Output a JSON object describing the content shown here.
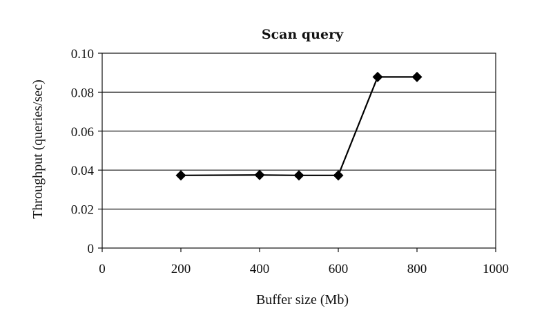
{
  "chart_data": {
    "type": "line",
    "title": "Scan query",
    "xlabel": "Buffer size (Mb)",
    "ylabel": "Throughput (queries/sec)",
    "xlim": [
      0,
      1000
    ],
    "ylim": [
      0,
      0.1
    ],
    "x_ticks": [
      0,
      200,
      400,
      600,
      800,
      1000
    ],
    "x_tick_labels": [
      "0",
      "200",
      "400",
      "600",
      "800",
      "1000"
    ],
    "y_ticks": [
      0,
      0.02,
      0.04,
      0.06,
      0.08,
      0.1
    ],
    "y_tick_labels": [
      "0",
      "0.02",
      "0.04",
      "0.06",
      "0.08",
      "0.10"
    ],
    "grid": "horizontal",
    "legend": "none",
    "series": [
      {
        "x": [
          200,
          400,
          500,
          600,
          700,
          800
        ],
        "y": [
          0.0373,
          0.0375,
          0.0373,
          0.0373,
          0.0878,
          0.0878
        ],
        "color": "#000000",
        "marker": "diamond"
      }
    ]
  }
}
